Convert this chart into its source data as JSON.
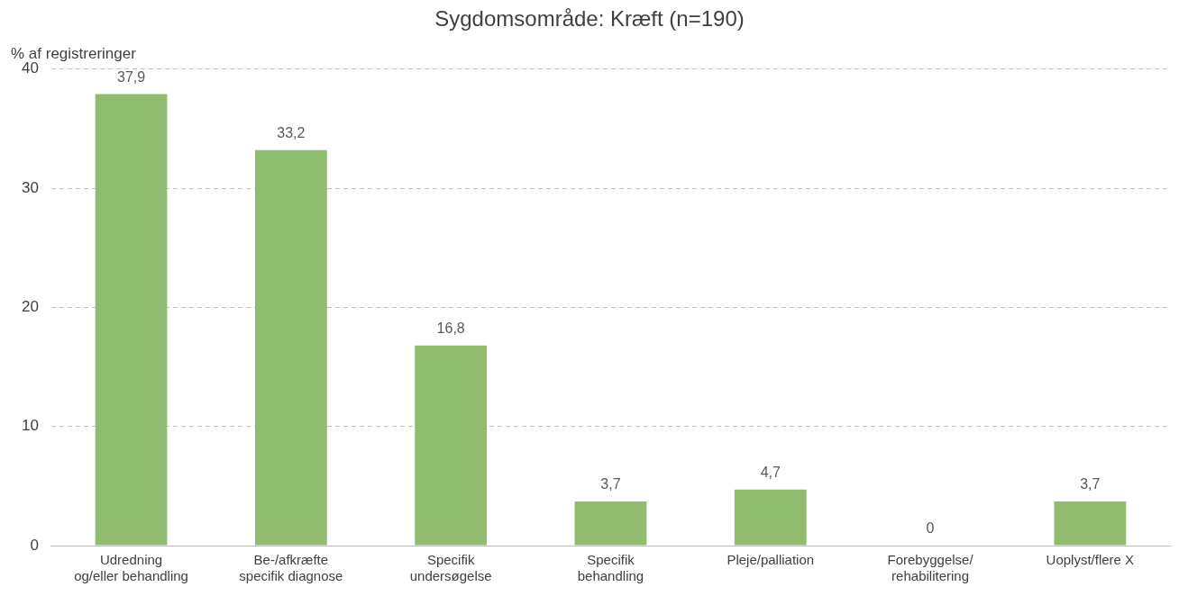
{
  "chart_data": {
    "type": "bar",
    "title": "Sygdomsområde: Kræft (n=190)",
    "ylabel": "% af registreringer",
    "categories": [
      "Udredning\nog/eller behandling",
      "Be-/afkræfte\nspecifik diagnose",
      "Specifik\nundersøgelse",
      "Specifik\nbehandling",
      "Pleje/palliation",
      "Forebyggelse/\nrehabilitering",
      "Uoplyst/flere X"
    ],
    "values": [
      37.9,
      33.2,
      16.8,
      3.7,
      4.7,
      0,
      3.7
    ],
    "color": "#8fbc6e",
    "value_labels": [
      "37,9",
      "33,2",
      "16,8",
      "3,7",
      "4,7",
      "0",
      "3,7"
    ],
    "ylim": [
      0,
      40
    ],
    "yticks": [
      0,
      10,
      20,
      30,
      40
    ],
    "grid": "y",
    "legend": false
  }
}
